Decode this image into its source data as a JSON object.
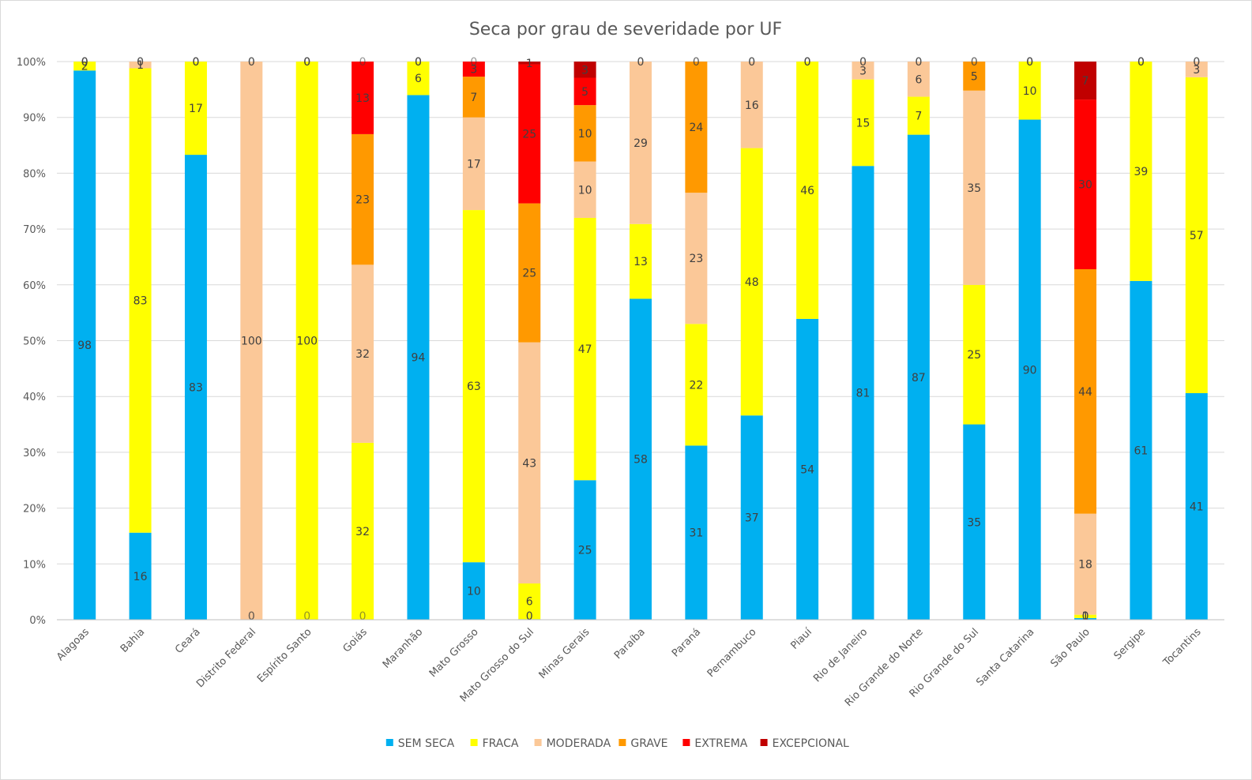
{
  "chart_data": {
    "type": "bar",
    "stacked": "percent",
    "title": "Seca por grau de severidade por UF",
    "xlabel": "",
    "ylabel": "",
    "ylim": [
      0,
      100
    ],
    "y_ticks": [
      "0%",
      "10%",
      "20%",
      "30%",
      "40%",
      "50%",
      "60%",
      "70%",
      "80%",
      "90%",
      "100%"
    ],
    "grid": true,
    "legend_position": "bottom",
    "categories": [
      "Alagoas",
      "Bahia",
      "Ceará",
      "Distrito Federal",
      "Espírito Santo",
      "Goiás",
      "Maranhão",
      "Mato Grosso",
      "Mato Grosso do Sul",
      "Minas Gerais",
      "Paraíba",
      "Paraná",
      "Pernambuco",
      "Piauí",
      "Rio de Janeiro",
      "Rio Grande do Norte",
      "Rio Grande do Sul",
      "Santa Catarina",
      "São Paulo",
      "Sergipe",
      "Tocantins"
    ],
    "series": [
      {
        "name": "SEM SECA",
        "color": "#00b0f0",
        "values": [
          98.4,
          15.6,
          83.3,
          0,
          0,
          0,
          94.0,
          10.3,
          0.1,
          25.0,
          57.5,
          31.2,
          36.6,
          53.9,
          81.3,
          86.9,
          35.0,
          89.6,
          0.3,
          60.7,
          40.6
        ]
      },
      {
        "name": "FRACA",
        "color": "#ffff00",
        "values": [
          1.6,
          83.2,
          16.7,
          0,
          100,
          31.7,
          6.0,
          63.1,
          6.4,
          47.0,
          13.4,
          21.8,
          47.9,
          46.1,
          15.5,
          6.8,
          25.0,
          10.4,
          0.6,
          39.3,
          56.6
        ]
      },
      {
        "name": "MODERADA",
        "color": "#fbc898",
        "values": [
          0,
          1.2,
          0,
          100,
          0,
          31.9,
          0,
          16.6,
          43.2,
          10.1,
          29.1,
          23.5,
          15.5,
          0,
          3.2,
          6.3,
          34.8,
          0,
          18.1,
          0,
          2.8
        ]
      },
      {
        "name": "GRAVE",
        "color": "#ff9900",
        "values": [
          0,
          0,
          0,
          0,
          0,
          23.4,
          0,
          7.3,
          24.9,
          10.1,
          0,
          23.5,
          0,
          0,
          0,
          0,
          5.2,
          0,
          43.8,
          0,
          0
        ]
      },
      {
        "name": "EXTREMA",
        "color": "#ff0000",
        "values": [
          0,
          0,
          0,
          0,
          0,
          13.0,
          0,
          2.7,
          24.9,
          4.9,
          0,
          0,
          0,
          0,
          0,
          0,
          0,
          0,
          30.4,
          0,
          0
        ]
      },
      {
        "name": "EXCEPCIONAL",
        "color": "#c00000",
        "values": [
          0,
          0,
          0,
          0,
          0,
          0,
          0,
          0,
          0.5,
          2.9,
          0,
          0,
          0,
          0,
          0,
          0,
          0,
          0,
          6.8,
          0,
          0
        ]
      }
    ],
    "data_labels": [
      [
        "98",
        "16",
        "83",
        "0",
        "0",
        "0",
        "94",
        "10",
        "0",
        "25",
        "58",
        "31",
        "37",
        "54",
        "81",
        "87",
        "35",
        "90",
        "0",
        "61",
        "41"
      ],
      [
        "2",
        "83",
        "17",
        "0",
        "100",
        "32",
        "6",
        "63",
        "6",
        "47",
        "13",
        "22",
        "48",
        "46",
        "15",
        "7",
        "25",
        "10",
        "1",
        "39",
        "57"
      ],
      [
        "0",
        "1",
        "0",
        "100",
        "0",
        "32",
        "0",
        "17",
        "43",
        "10",
        "29",
        "23",
        "16",
        "0",
        "3",
        "6",
        "35",
        "0",
        "18",
        "0",
        "3"
      ],
      [
        "0",
        "0",
        "0",
        "0",
        "0",
        "23",
        "0",
        "7",
        "25",
        "10",
        "0",
        "24",
        "0",
        "0",
        "0",
        "0",
        "5",
        "0",
        "44",
        "0",
        "0"
      ],
      [
        "0",
        "0",
        "0",
        "0",
        "0",
        "13",
        "0",
        "3",
        "25",
        "5",
        "0",
        "0",
        "0",
        "0",
        "0",
        "0",
        "0",
        "0",
        "30",
        "0",
        "0"
      ],
      [
        "0",
        "0",
        "0",
        "0",
        "0",
        "0",
        "0",
        "0",
        "1",
        "3",
        "0",
        "0",
        "0",
        "0",
        "0",
        "0",
        "0",
        "0",
        "7",
        "0",
        "0"
      ]
    ]
  }
}
